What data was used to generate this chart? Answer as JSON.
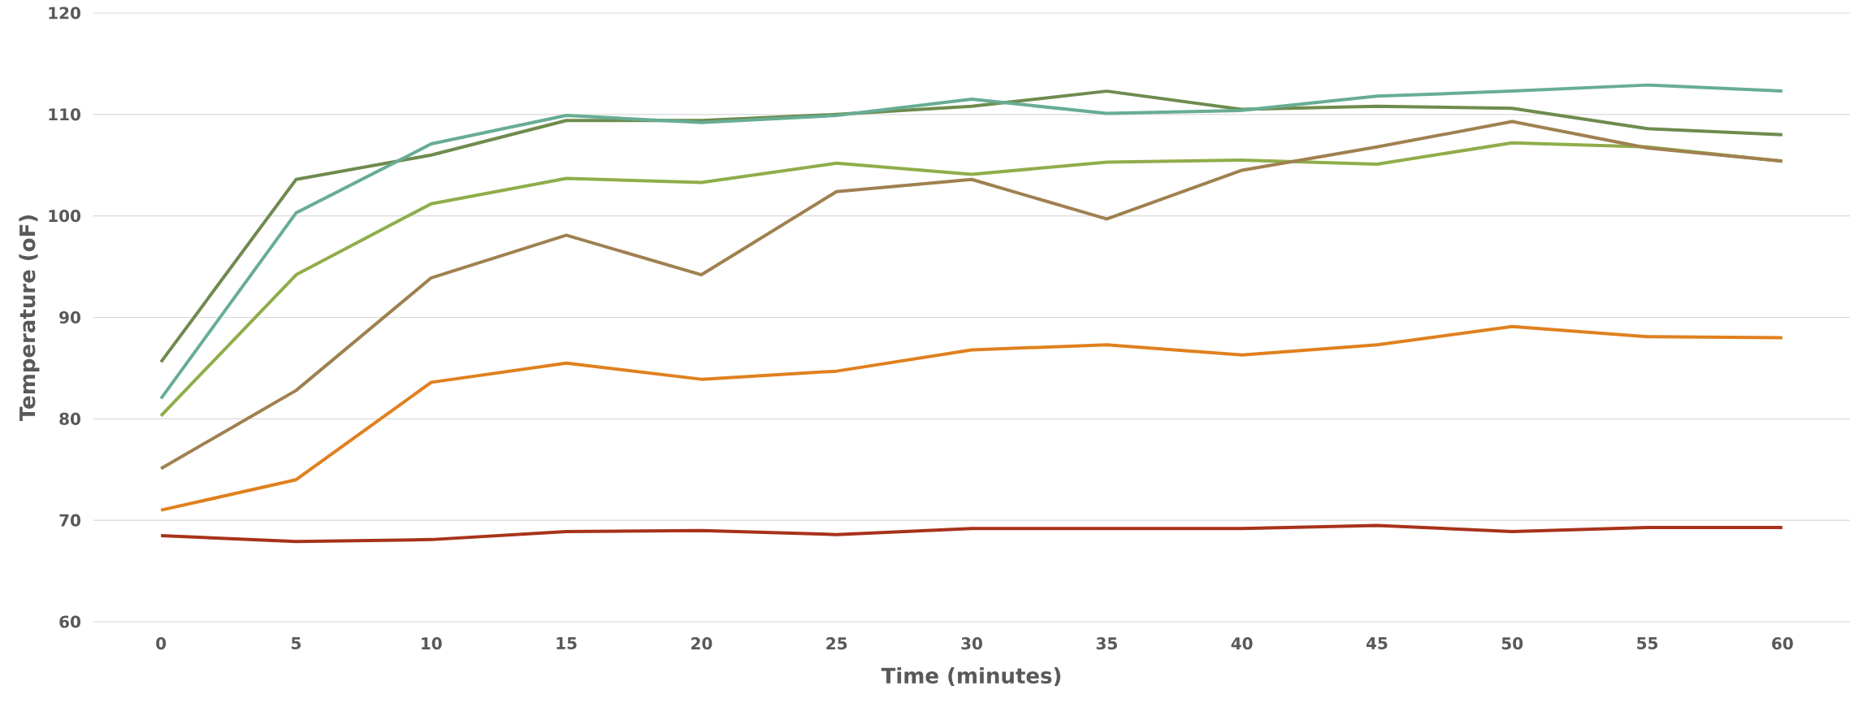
{
  "chart_data": {
    "type": "line",
    "xlabel": "Time (minutes)",
    "ylabel": "Temperature (oF)",
    "categories": [
      "0",
      "5",
      "10",
      "15",
      "20",
      "25",
      "30",
      "35",
      "40",
      "45",
      "50",
      "55",
      "60"
    ],
    "series": [
      {
        "color": "#6e8b4e",
        "values": [
          85.6,
          103.6,
          106.0,
          109.4,
          109.4,
          110.0,
          110.8,
          112.3,
          110.5,
          110.8,
          110.6,
          108.6,
          108.0
        ]
      },
      {
        "color": "#67ad94",
        "values": [
          82.0,
          100.3,
          107.1,
          109.9,
          109.2,
          109.9,
          111.5,
          110.1,
          110.4,
          111.8,
          112.3,
          112.9,
          112.3
        ]
      },
      {
        "color": "#8fad4a",
        "values": [
          80.3,
          94.2,
          101.2,
          103.7,
          103.3,
          105.2,
          104.1,
          105.3,
          105.5,
          105.1,
          107.2,
          106.8,
          105.4
        ]
      },
      {
        "color": "#a08050",
        "values": [
          75.1,
          82.8,
          93.9,
          98.1,
          94.2,
          102.4,
          103.6,
          99.7,
          104.5,
          106.8,
          109.3,
          106.7,
          105.4
        ]
      },
      {
        "color": "#e0801e",
        "values": [
          71.0,
          74.0,
          83.6,
          85.5,
          83.9,
          84.7,
          86.8,
          87.3,
          86.3,
          87.3,
          89.1,
          88.1,
          88.0
        ]
      },
      {
        "color": "#a8321a",
        "values": [
          68.5,
          67.9,
          68.1,
          68.9,
          69.0,
          68.6,
          69.2,
          69.2,
          69.2,
          69.5,
          68.9,
          69.3,
          69.3
        ]
      }
    ],
    "ylim": [
      60,
      120
    ],
    "yticks": [
      60,
      70,
      80,
      90,
      100,
      110,
      120
    ],
    "grid": "y",
    "marker": "none",
    "line_style": "solid"
  }
}
